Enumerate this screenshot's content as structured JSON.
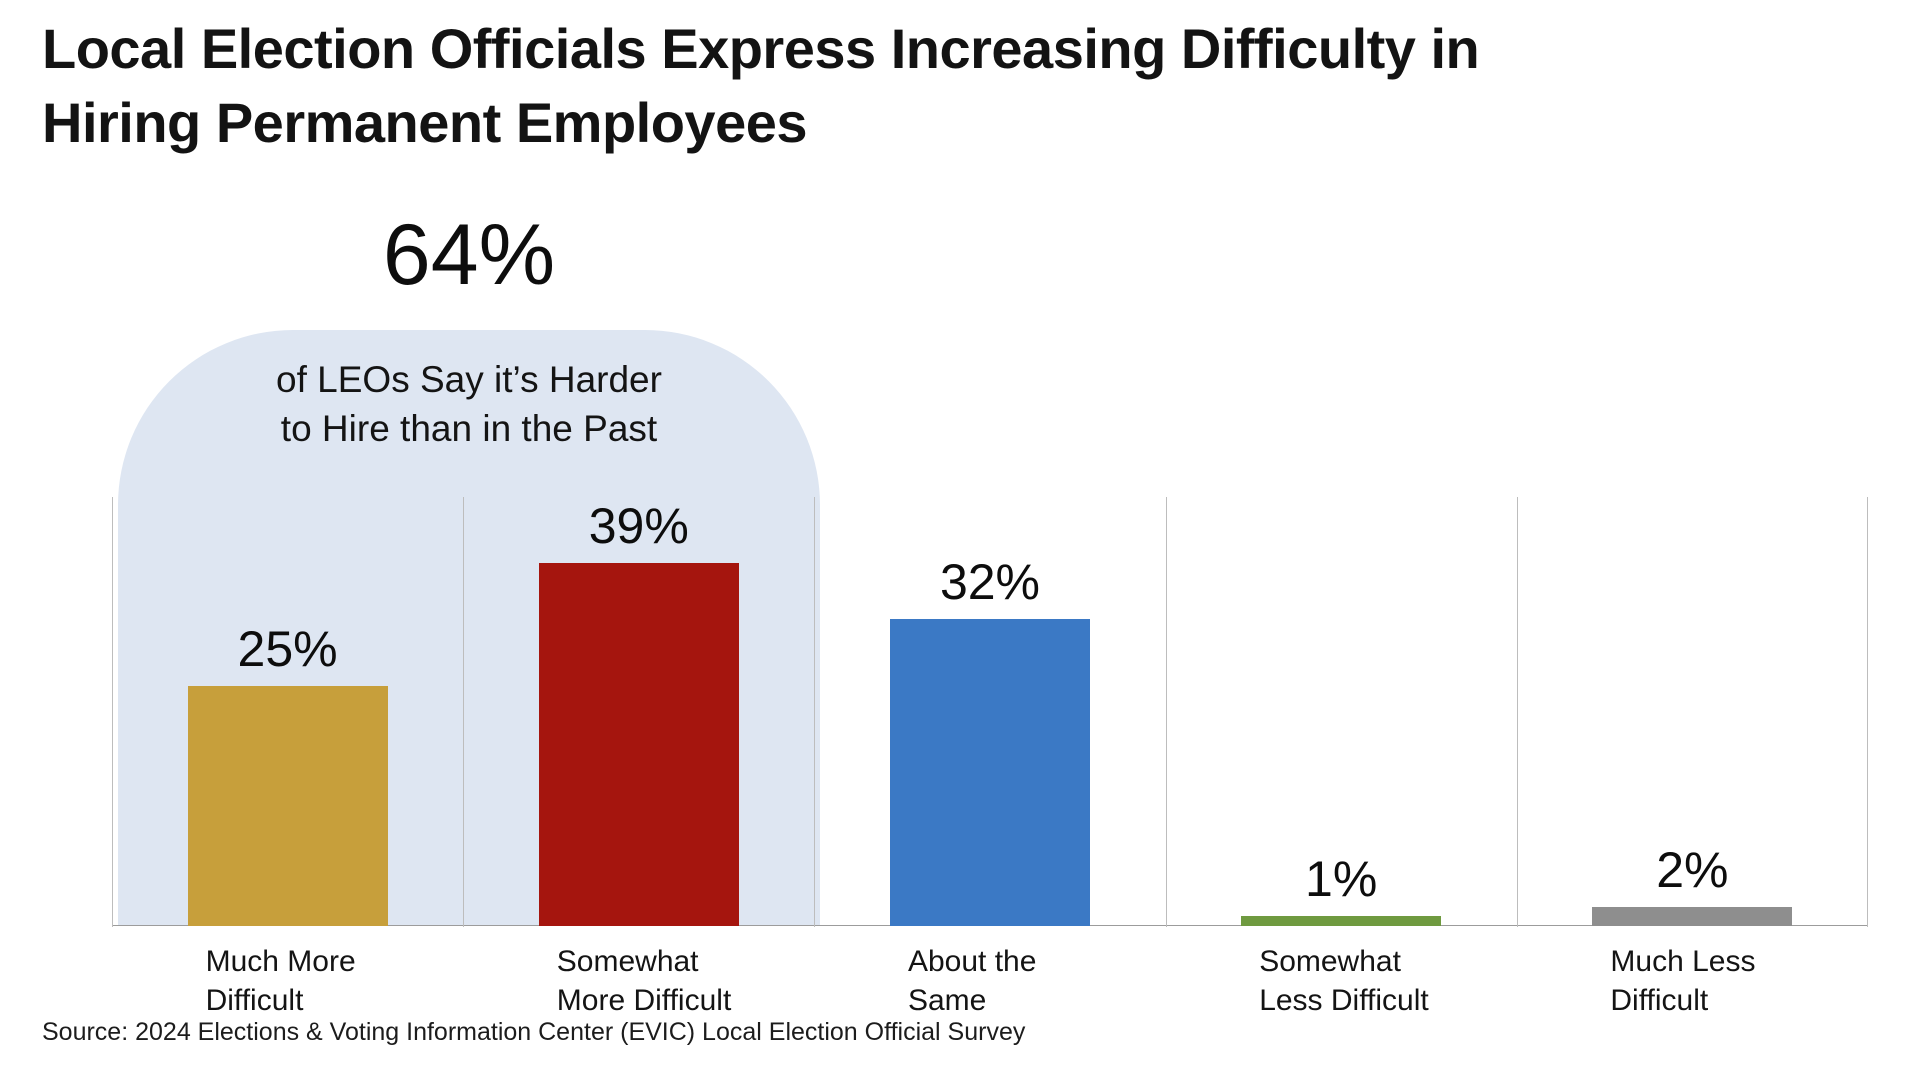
{
  "title": {
    "line1": "Local Election Officials Express Increasing Difficulty in",
    "line2": "Hiring Permanent Employees"
  },
  "highlight": {
    "value": "64%",
    "caption_line1": "of LEOs Say it’s Harder",
    "caption_line2": "to Hire than in the Past",
    "fill_color": "#DEE6F2"
  },
  "source": "Source: 2024 Elections & Voting Information Center (EVIC) Local Election Official Survey",
  "chart_data": {
    "type": "bar",
    "title": "Local Election Officials Express Increasing Difficulty in Hiring Permanent Employees",
    "categories": [
      [
        "Much More",
        "Difficult"
      ],
      [
        "Somewhat",
        "More Difficult"
      ],
      [
        "About the",
        "Same"
      ],
      [
        "Somewhat",
        "Less Difficult"
      ],
      [
        "Much Less",
        "Difficult"
      ]
    ],
    "values": [
      25,
      39,
      32,
      1,
      2
    ],
    "value_labels": [
      "25%",
      "39%",
      "32%",
      "1%",
      "2%"
    ],
    "bar_colors": [
      "#C79F3B",
      "#A5150E",
      "#3B79C5",
      "#6F9A40",
      "#8E8E8E"
    ],
    "ylim": [
      0,
      45
    ],
    "grid": "vertical-category-separators",
    "legend": "none",
    "annotation": {
      "value": 64,
      "label": "64%",
      "text": "of LEOs Say it’s Harder to Hire than in the Past",
      "covers_categories": [
        "Much More Difficult",
        "Somewhat More Difficult"
      ],
      "fill": "#DEE6F2"
    },
    "xlabel": "",
    "ylabel": ""
  }
}
